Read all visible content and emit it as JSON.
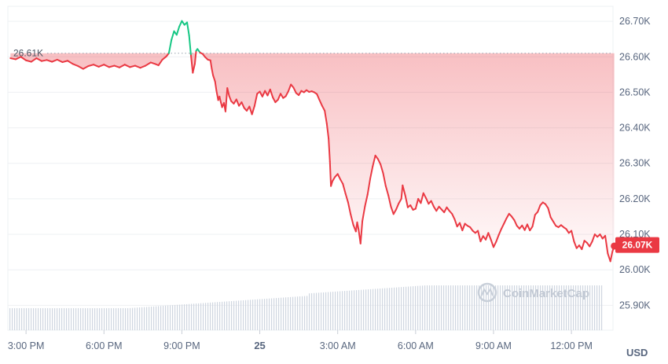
{
  "chart_data": {
    "type": "area",
    "y_tick_labels": [
      "26.70K",
      "26.60K",
      "26.50K",
      "26.40K",
      "26.30K",
      "26.20K",
      "26.10K",
      "26.00K",
      "25.90K"
    ],
    "y_tick_values": [
      26.7,
      26.6,
      26.5,
      26.4,
      26.3,
      26.2,
      26.1,
      26.0,
      25.9
    ],
    "ylim": [
      25.83,
      26.76
    ],
    "x_tick_labels": [
      "3:00 PM",
      "6:00 PM",
      "9:00 PM",
      "25",
      "3:00 AM",
      "6:00 AM",
      "9:00 AM",
      "12:00 PM"
    ],
    "x_tick_hours": [
      0,
      3,
      6,
      9,
      12,
      15,
      18,
      21
    ],
    "xlim_hours": [
      -0.7,
      22.6
    ],
    "currency": "USD",
    "reference_label": "26.61K",
    "reference_value": 26.61,
    "current_label": "26.07K",
    "current_value": 26.07,
    "watermark": "CoinMarketCap",
    "colors": {
      "up": "#16c784",
      "down": "#ea3943",
      "fill": "#ea3943",
      "grid": "#eef0f3",
      "volume": "#cfd6e0"
    },
    "series": [
      {
        "values": [
          [
            -0.6,
            26.596
          ],
          [
            -0.4,
            26.593
          ],
          [
            -0.2,
            26.6
          ],
          [
            0.0,
            26.59
          ],
          [
            0.2,
            26.586
          ],
          [
            0.4,
            26.596
          ],
          [
            0.6,
            26.588
          ],
          [
            0.8,
            26.591
          ],
          [
            1.0,
            26.586
          ],
          [
            1.2,
            26.592
          ],
          [
            1.4,
            26.585
          ],
          [
            1.6,
            26.589
          ],
          [
            1.8,
            26.58
          ],
          [
            2.0,
            26.574
          ],
          [
            2.2,
            26.566
          ],
          [
            2.4,
            26.574
          ],
          [
            2.6,
            26.578
          ],
          [
            2.8,
            26.572
          ],
          [
            3.0,
            26.578
          ],
          [
            3.2,
            26.571
          ],
          [
            3.4,
            26.575
          ],
          [
            3.6,
            26.57
          ],
          [
            3.8,
            26.578
          ],
          [
            4.0,
            26.571
          ],
          [
            4.2,
            26.575
          ],
          [
            4.4,
            26.569
          ],
          [
            4.6,
            26.575
          ],
          [
            4.8,
            26.584
          ],
          [
            5.0,
            26.579
          ],
          [
            5.1,
            26.576
          ],
          [
            5.25,
            26.592
          ],
          [
            5.4,
            26.601
          ],
          [
            5.5,
            26.61
          ],
          [
            5.6,
            26.648
          ],
          [
            5.7,
            26.672
          ],
          [
            5.8,
            26.662
          ],
          [
            5.9,
            26.685
          ],
          [
            6.0,
            26.701
          ],
          [
            6.1,
            26.69
          ],
          [
            6.2,
            26.697
          ],
          [
            6.28,
            26.66
          ],
          [
            6.35,
            26.604
          ],
          [
            6.42,
            26.555
          ],
          [
            6.5,
            26.58
          ],
          [
            6.55,
            26.617
          ],
          [
            6.6,
            26.622
          ],
          [
            6.7,
            26.612
          ],
          [
            6.8,
            26.608
          ],
          [
            6.9,
            26.599
          ],
          [
            7.0,
            26.592
          ],
          [
            7.1,
            26.59
          ],
          [
            7.15,
            26.567
          ],
          [
            7.2,
            26.548
          ],
          [
            7.28,
            26.53
          ],
          [
            7.33,
            26.505
          ],
          [
            7.4,
            26.478
          ],
          [
            7.45,
            26.488
          ],
          [
            7.5,
            26.472
          ],
          [
            7.55,
            26.458
          ],
          [
            7.62,
            26.47
          ],
          [
            7.68,
            26.446
          ],
          [
            7.75,
            26.512
          ],
          [
            7.82,
            26.49
          ],
          [
            7.9,
            26.475
          ],
          [
            8.0,
            26.468
          ],
          [
            8.1,
            26.48
          ],
          [
            8.2,
            26.462
          ],
          [
            8.3,
            26.472
          ],
          [
            8.4,
            26.456
          ],
          [
            8.5,
            26.448
          ],
          [
            8.6,
            26.46
          ],
          [
            8.7,
            26.438
          ],
          [
            8.8,
            26.462
          ],
          [
            8.9,
            26.496
          ],
          [
            9.0,
            26.502
          ],
          [
            9.1,
            26.488
          ],
          [
            9.2,
            26.504
          ],
          [
            9.3,
            26.491
          ],
          [
            9.4,
            26.508
          ],
          [
            9.5,
            26.486
          ],
          [
            9.6,
            26.472
          ],
          [
            9.7,
            26.479
          ],
          [
            9.8,
            26.496
          ],
          [
            9.9,
            26.484
          ],
          [
            10.0,
            26.489
          ],
          [
            10.1,
            26.503
          ],
          [
            10.2,
            26.522
          ],
          [
            10.3,
            26.513
          ],
          [
            10.4,
            26.498
          ],
          [
            10.5,
            26.492
          ],
          [
            10.6,
            26.504
          ],
          [
            10.7,
            26.5
          ],
          [
            10.8,
            26.506
          ],
          [
            10.9,
            26.501
          ],
          [
            11.0,
            26.503
          ],
          [
            11.1,
            26.5
          ],
          [
            11.2,
            26.495
          ],
          [
            11.3,
            26.478
          ],
          [
            11.4,
            26.462
          ],
          [
            11.5,
            26.448
          ],
          [
            11.58,
            26.412
          ],
          [
            11.65,
            26.37
          ],
          [
            11.7,
            26.305
          ],
          [
            11.74,
            26.236
          ],
          [
            11.8,
            26.25
          ],
          [
            11.9,
            26.262
          ],
          [
            12.0,
            26.27
          ],
          [
            12.1,
            26.255
          ],
          [
            12.2,
            26.242
          ],
          [
            12.3,
            26.215
          ],
          [
            12.4,
            26.19
          ],
          [
            12.5,
            26.156
          ],
          [
            12.6,
            26.127
          ],
          [
            12.7,
            26.108
          ],
          [
            12.75,
            26.134
          ],
          [
            12.8,
            26.115
          ],
          [
            12.88,
            26.074
          ],
          [
            12.95,
            26.137
          ],
          [
            13.05,
            26.179
          ],
          [
            13.15,
            26.212
          ],
          [
            13.25,
            26.256
          ],
          [
            13.35,
            26.292
          ],
          [
            13.45,
            26.322
          ],
          [
            13.55,
            26.312
          ],
          [
            13.65,
            26.297
          ],
          [
            13.75,
            26.272
          ],
          [
            13.85,
            26.236
          ],
          [
            13.95,
            26.21
          ],
          [
            14.05,
            26.178
          ],
          [
            14.15,
            26.157
          ],
          [
            14.25,
            26.17
          ],
          [
            14.35,
            26.187
          ],
          [
            14.45,
            26.2
          ],
          [
            14.5,
            26.238
          ],
          [
            14.6,
            26.21
          ],
          [
            14.7,
            26.176
          ],
          [
            14.8,
            26.182
          ],
          [
            14.9,
            26.169
          ],
          [
            15.0,
            26.172
          ],
          [
            15.1,
            26.2
          ],
          [
            15.2,
            26.188
          ],
          [
            15.3,
            26.216
          ],
          [
            15.4,
            26.202
          ],
          [
            15.5,
            26.186
          ],
          [
            15.6,
            26.194
          ],
          [
            15.7,
            26.178
          ],
          [
            15.8,
            26.166
          ],
          [
            15.9,
            26.178
          ],
          [
            16.0,
            26.17
          ],
          [
            16.1,
            26.162
          ],
          [
            16.2,
            26.176
          ],
          [
            16.3,
            26.166
          ],
          [
            16.4,
            26.158
          ],
          [
            16.5,
            26.143
          ],
          [
            16.6,
            26.122
          ],
          [
            16.7,
            26.132
          ],
          [
            16.8,
            26.111
          ],
          [
            16.9,
            26.13
          ],
          [
            17.0,
            26.124
          ],
          [
            17.1,
            26.12
          ],
          [
            17.2,
            26.11
          ],
          [
            17.3,
            26.104
          ],
          [
            17.4,
            26.11
          ],
          [
            17.5,
            26.08
          ],
          [
            17.6,
            26.095
          ],
          [
            17.7,
            26.085
          ],
          [
            17.8,
            26.104
          ],
          [
            17.9,
            26.085
          ],
          [
            18.0,
            26.064
          ],
          [
            18.1,
            26.079
          ],
          [
            18.2,
            26.098
          ],
          [
            18.3,
            26.115
          ],
          [
            18.4,
            26.13
          ],
          [
            18.5,
            26.145
          ],
          [
            18.6,
            26.158
          ],
          [
            18.7,
            26.15
          ],
          [
            18.8,
            26.14
          ],
          [
            18.9,
            26.124
          ],
          [
            19.0,
            26.116
          ],
          [
            19.1,
            26.125
          ],
          [
            19.2,
            26.112
          ],
          [
            19.3,
            26.128
          ],
          [
            19.4,
            26.111
          ],
          [
            19.5,
            26.122
          ],
          [
            19.6,
            26.155
          ],
          [
            19.7,
            26.163
          ],
          [
            19.8,
            26.182
          ],
          [
            19.9,
            26.19
          ],
          [
            20.0,
            26.185
          ],
          [
            20.1,
            26.174
          ],
          [
            20.2,
            26.148
          ],
          [
            20.3,
            26.136
          ],
          [
            20.4,
            26.124
          ],
          [
            20.5,
            26.12
          ],
          [
            20.6,
            26.126
          ],
          [
            20.7,
            26.12
          ],
          [
            20.8,
            26.115
          ],
          [
            20.9,
            26.104
          ],
          [
            21.0,
            26.11
          ],
          [
            21.1,
            26.08
          ],
          [
            21.2,
            26.061
          ],
          [
            21.3,
            26.069
          ],
          [
            21.4,
            26.058
          ],
          [
            21.5,
            26.082
          ],
          [
            21.6,
            26.076
          ],
          [
            21.7,
            26.066
          ],
          [
            21.8,
            26.08
          ],
          [
            21.9,
            26.1
          ],
          [
            22.0,
            26.093
          ],
          [
            22.1,
            26.1
          ],
          [
            22.2,
            26.088
          ],
          [
            22.3,
            26.096
          ],
          [
            22.4,
            26.046
          ],
          [
            22.5,
            26.024
          ],
          [
            22.58,
            26.052
          ],
          [
            22.65,
            26.067
          ]
        ]
      }
    ]
  }
}
